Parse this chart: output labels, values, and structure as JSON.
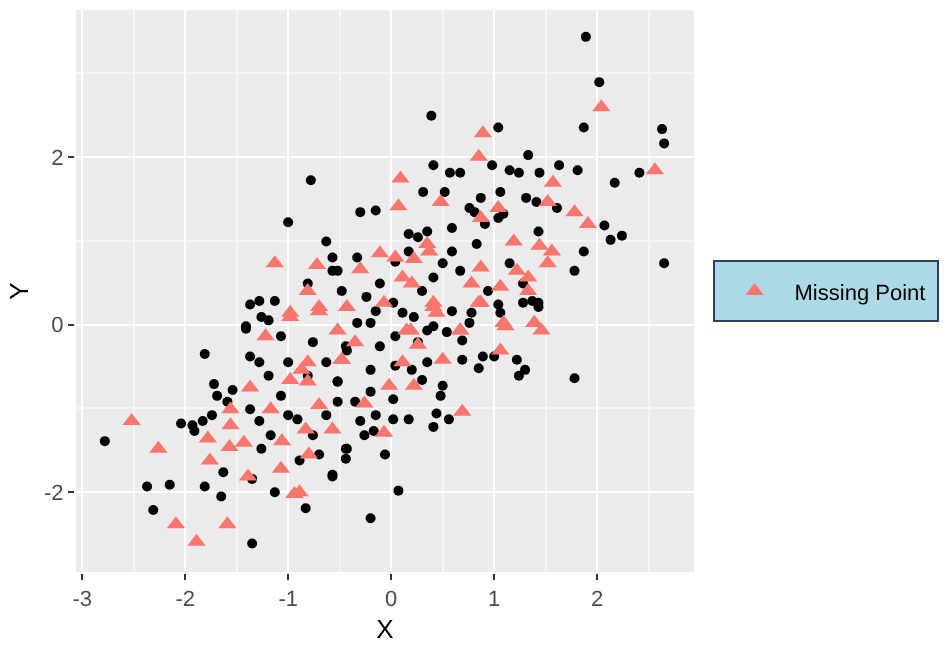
{
  "chart_data": {
    "type": "scatter",
    "xlabel": "X",
    "ylabel": "Y",
    "xlim": [
      -3.06,
      2.94
    ],
    "ylim": [
      -2.95,
      3.75
    ],
    "xticks": [
      -3,
      -2,
      -1,
      0,
      1,
      2
    ],
    "yticks": [
      -2,
      0,
      2
    ],
    "grid": true,
    "legend": "right",
    "series": [
      {
        "color": "#000000",
        "marker": "circle",
        "x": [
          -0.78,
          -1.0,
          -0.63,
          -0.57,
          -0.52,
          -1.37,
          -1.28,
          -1.19,
          -1.41,
          -1.13,
          -0.81,
          1.89,
          2.02,
          1.87,
          0.39,
          1.04,
          2.63,
          2.65,
          0.41,
          0.57,
          0.67,
          0.98,
          1.15,
          1.24,
          1.33,
          1.44,
          1.63,
          1.81,
          2.17,
          2.41,
          -0.3,
          -0.15,
          0.31,
          0.52,
          0.87,
          1.06,
          1.31,
          1.41,
          1.61,
          0.76,
          0.81,
          1.09,
          2.07,
          2.24,
          2.13,
          1.87,
          1.78,
          2.65,
          0.17,
          0.35,
          0.59,
          0.91,
          1.04,
          1.43,
          0.59,
          0.83,
          1.15,
          1.28,
          1.37,
          1.43,
          1.04,
          0.94,
          0.67,
          0.5,
          0.26,
          0.17,
          0.04,
          0.41,
          0.3,
          0.59,
          0.78,
          -0.57,
          -0.33,
          -0.48,
          -0.24,
          -0.11,
          0.02,
          0.22,
          -0.2,
          0.35,
          -2.78,
          -2.37,
          -2.31,
          -2.15,
          -2.04,
          -1.93,
          -1.83,
          -1.91,
          -1.81,
          -1.81,
          -1.65,
          -1.63,
          -1.35,
          -1.13,
          -0.83,
          -1.72,
          -1.69,
          -1.54,
          -1.59,
          -1.74,
          -1.41,
          -1.37,
          -1.28,
          -1.19,
          -1.37,
          -1.28,
          -1.26,
          -1.35,
          -1.07,
          -1.0,
          -1.17,
          -0.91,
          -0.89,
          -0.76,
          -0.7,
          -0.57,
          -0.63,
          -0.52,
          -1.0,
          -0.81,
          -1.07,
          -1.26,
          -0.76,
          -0.63,
          -0.52,
          -0.43,
          -0.43,
          1.78,
          0.07,
          -0.2,
          -0.06,
          -0.44,
          -0.44,
          -0.57,
          -0.26,
          -0.17,
          -0.3,
          -0.15,
          0.02,
          0.17,
          0.41,
          0.44,
          0.56,
          0.48,
          0.3,
          0.5,
          0.02,
          -0.2,
          -0.35,
          -0.52,
          -0.2,
          0.04,
          0.2,
          0.35,
          0.69,
          0.85,
          0.89,
          1.22,
          1.24,
          1.3,
          1.0,
          0.69,
          0.54,
          0.76,
          1.06,
          1.28,
          1.43,
          -0.33,
          -0.44,
          -0.11,
          0.04,
          0.26,
          0.41,
          0.11,
          -0.15
        ],
        "values": [
          1.72,
          1.22,
          0.99,
          0.8,
          0.64,
          0.24,
          0.28,
          0.05,
          -0.05,
          0.28,
          0.49,
          3.43,
          2.89,
          2.35,
          2.49,
          2.35,
          2.33,
          2.16,
          1.9,
          1.81,
          1.81,
          1.9,
          1.84,
          1.81,
          2.02,
          1.81,
          1.9,
          1.84,
          1.69,
          1.81,
          1.34,
          1.36,
          1.58,
          1.58,
          1.51,
          1.58,
          1.51,
          1.46,
          1.39,
          1.39,
          1.34,
          1.32,
          1.18,
          1.06,
          1.01,
          0.87,
          0.64,
          0.73,
          1.08,
          1.11,
          1.15,
          1.2,
          1.27,
          1.11,
          0.87,
          0.96,
          0.73,
          0.49,
          0.28,
          0.26,
          0.24,
          0.4,
          0.64,
          0.73,
          1.04,
          0.87,
          0.75,
          0.56,
          0.4,
          0.16,
          0.14,
          0.64,
          0.8,
          0.4,
          0.33,
          0.49,
          0.26,
          0.09,
          0.02,
          -0.07,
          -1.39,
          -1.93,
          -2.21,
          -1.91,
          -1.18,
          -1.2,
          -1.15,
          -1.27,
          -0.35,
          -1.93,
          -2.05,
          -1.76,
          -2.61,
          -2.0,
          -2.19,
          -0.71,
          -0.85,
          -0.78,
          -0.92,
          -1.08,
          -0.02,
          -0.38,
          -0.45,
          -0.61,
          -1.01,
          -1.15,
          -1.48,
          -1.84,
          -0.85,
          -1.08,
          -1.32,
          -1.13,
          -1.62,
          -1.32,
          -1.55,
          -1.79,
          -1.08,
          -0.92,
          -0.45,
          -0.61,
          -0.14,
          0.09,
          -0.21,
          -0.45,
          -0.68,
          -1.48,
          -0.31,
          -0.64,
          -1.98,
          -2.31,
          -1.55,
          -1.48,
          -1.6,
          -1.81,
          -1.32,
          -1.27,
          -1.15,
          -1.08,
          -1.13,
          -1.13,
          -1.22,
          -1.06,
          -1.13,
          -0.85,
          -0.66,
          -0.73,
          -0.89,
          -0.8,
          -0.92,
          -0.68,
          -0.54,
          -0.49,
          -0.54,
          -0.45,
          -0.42,
          -0.52,
          -0.38,
          -0.42,
          -0.61,
          -0.54,
          -0.38,
          -0.19,
          -0.09,
          0.02,
          0.14,
          0.26,
          0.21,
          0.02,
          -0.26,
          -0.26,
          -0.14,
          -0.21,
          -0.02,
          0.14,
          0.16
        ]
      },
      {
        "name": "Missing Point",
        "color": "#f8766d",
        "marker": "triangle",
        "x": [
          -1.13,
          -0.72,
          -0.81,
          -0.98,
          -0.7,
          2.04,
          0.89,
          0.85,
          0.09,
          0.07,
          0.48,
          1.04,
          0.87,
          1.57,
          1.52,
          1.78,
          1.91,
          2.56,
          0.35,
          0.37,
          1.19,
          1.44,
          1.56,
          1.52,
          0.04,
          0.22,
          -0.11,
          -0.3,
          0.11,
          0.87,
          0.78,
          1.22,
          1.33,
          1.33,
          1.06,
          0.87,
          0.41,
          0.2,
          -0.07,
          -0.43,
          0.44,
          1.09,
          1.39,
          0.67,
          0.19,
          -2.52,
          -2.26,
          -2.09,
          -1.89,
          -1.59,
          -1.76,
          -1.78,
          -1.57,
          -1.56,
          -1.56,
          -1.43,
          -1.39,
          -1.37,
          -1.22,
          -1.17,
          -1.07,
          -1.06,
          -0.94,
          -0.89,
          -0.98,
          -0.87,
          -0.81,
          -0.81,
          -0.83,
          -0.8,
          -0.7,
          -0.57,
          -0.98,
          -0.7,
          -0.52,
          -0.48,
          -0.07,
          -0.26,
          0.69,
          0.22,
          -0.02,
          0.5,
          1.06,
          0.11,
          0.26,
          -0.35,
          -0.48,
          1.46,
          1.39,
          1.11,
          0.67,
          0.15,
          0.41,
          0.85
        ],
        "values": [
          0.73,
          0.71,
          0.4,
          0.14,
          0.21,
          2.59,
          2.28,
          2.0,
          1.74,
          1.41,
          1.46,
          1.39,
          1.27,
          1.69,
          1.46,
          1.34,
          1.2,
          1.84,
          0.96,
          0.87,
          0.99,
          0.94,
          0.87,
          0.73,
          0.8,
          0.78,
          0.85,
          0.66,
          0.56,
          0.68,
          0.49,
          0.64,
          0.56,
          0.4,
          0.45,
          0.26,
          0.26,
          0.49,
          0.26,
          0.21,
          0.14,
          0.02,
          0.02,
          -0.07,
          -0.07,
          -1.15,
          -1.48,
          -2.38,
          -2.59,
          -2.38,
          -1.62,
          -1.36,
          -1.46,
          -1.01,
          -1.2,
          -1.41,
          -1.81,
          -0.75,
          -0.14,
          -1.01,
          -1.72,
          -1.39,
          -2.02,
          -2.0,
          -0.66,
          -0.54,
          -0.68,
          -0.45,
          -1.25,
          -1.55,
          -0.96,
          -1.25,
          0.09,
          0.16,
          -0.07,
          -0.42,
          -1.29,
          -0.94,
          -1.04,
          -0.73,
          -0.73,
          -0.42,
          -0.31,
          -0.45,
          -0.24,
          -0.21,
          -0.42,
          -0.07,
          0.02,
          -0.02,
          -0.07,
          -0.07,
          0.21,
          0.26
        ]
      }
    ]
  }
}
